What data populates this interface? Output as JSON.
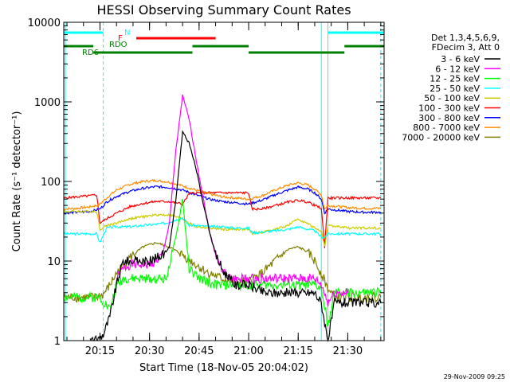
{
  "chart_data": {
    "type": "line",
    "title": "HESSI Observing Summary Count Rates",
    "ylabel": "Count Rate (s⁻¹ detector⁻¹)",
    "xlabel": "Start Time (18-Nov-05 20:04:02)",
    "yscale": "log",
    "ylim": [
      1,
      10000
    ],
    "xlim": [
      "20:04:02",
      "21:41:00"
    ],
    "x_ticks": [
      "20:15",
      "20:30",
      "20:45",
      "21:00",
      "21:15",
      "21:30"
    ],
    "y_ticks": [
      "1",
      "10",
      "100",
      "1000",
      "10000"
    ],
    "grid": false,
    "legend_position": "right",
    "legend_header": [
      "Det 1,3,4,5,6,9,",
      "FDecim 3, Att 0"
    ],
    "timestamp": "29-Nov-2009 09:25",
    "flag_labels": {
      "n": "N",
      "f": "F",
      "rdo": "RDO",
      "rd6": "RD6"
    },
    "flags": [
      {
        "label": "N",
        "color": "#00ffff",
        "segments": [
          [
            "20:04:02",
            "20:16:00"
          ],
          [
            "21:24:00",
            "21:41:00"
          ]
        ]
      },
      {
        "label": "F",
        "color": "#ff0000",
        "segments": [
          [
            "20:26:00",
            "20:50:00"
          ]
        ]
      },
      {
        "label": "RDO",
        "color": "#008000",
        "segments": [
          [
            "20:04:02",
            "20:13:00"
          ],
          [
            "20:43:00",
            "21:00:00"
          ],
          [
            "21:29:00",
            "21:41:00"
          ]
        ]
      },
      {
        "label": "RD6",
        "color": "#008000",
        "segments": [
          [
            "20:13:00",
            "20:43:00"
          ],
          [
            "21:00:00",
            "21:29:00"
          ]
        ]
      }
    ],
    "vertical_lines": [
      {
        "time": "20:04:30",
        "style": "solid",
        "color": "#00ffff"
      },
      {
        "time": "20:16:00",
        "style": "dashed",
        "color": "#00ffff"
      },
      {
        "time": "21:22:00",
        "style": "solid",
        "color": "#00ffff"
      },
      {
        "time": "21:24:00",
        "style": "solid",
        "color": "#00ffff"
      },
      {
        "time": "21:40:00",
        "style": "dashed",
        "color": "#00ffff"
      }
    ],
    "series": [
      {
        "name": "3 - 6 keV",
        "color": "#000000",
        "x": [
          "20:12",
          "20:14",
          "20:16",
          "20:18",
          "20:20",
          "20:22",
          "20:24",
          "20:26",
          "20:28",
          "20:30",
          "20:32",
          "20:34",
          "20:36",
          "20:38",
          "20:40",
          "20:42",
          "20:44",
          "20:46",
          "20:48",
          "20:50",
          "20:52",
          "20:54",
          "20:56",
          "21:00",
          "21:05",
          "21:10",
          "21:15",
          "21:20",
          "21:22",
          "21:24",
          "21:26",
          "21:30",
          "21:35",
          "21:40"
        ],
        "y": [
          1.0,
          1.0,
          1.2,
          2,
          5,
          10,
          10,
          10,
          10,
          10,
          11,
          12,
          15,
          60,
          420,
          300,
          150,
          60,
          25,
          12,
          8,
          6,
          5,
          5,
          4,
          4,
          4,
          4,
          3,
          1,
          3,
          3,
          3,
          3
        ]
      },
      {
        "name": "6 - 12 keV",
        "color": "#ff00ff",
        "x": [
          "20:20",
          "20:22",
          "20:24",
          "20:26",
          "20:28",
          "20:30",
          "20:32",
          "20:34",
          "20:36",
          "20:38",
          "20:40",
          "20:42",
          "20:44",
          "20:46",
          "20:48",
          "20:50",
          "20:52",
          "20:54",
          "20:58",
          "21:02",
          "21:06",
          "21:10",
          "21:15",
          "21:20",
          "21:22",
          "21:24",
          "21:26",
          "21:30"
        ],
        "y": [
          6,
          8,
          9,
          9,
          9,
          9,
          10,
          12,
          30,
          250,
          1200,
          600,
          200,
          70,
          25,
          12,
          8,
          6,
          6,
          6,
          6,
          6,
          6,
          6,
          5,
          3,
          4,
          4
        ]
      },
      {
        "name": "12 - 25 keV",
        "color": "#00ff00",
        "x": [
          "20:04",
          "20:10",
          "20:15",
          "20:18",
          "20:20",
          "20:22",
          "20:25",
          "20:30",
          "20:35",
          "20:38",
          "20:40",
          "20:42",
          "20:45",
          "20:50",
          "20:55",
          "21:00",
          "21:05",
          "21:10",
          "21:15",
          "21:20",
          "21:22",
          "21:24",
          "21:26",
          "21:30",
          "21:35",
          "21:40"
        ],
        "y": [
          3.5,
          3.5,
          3.5,
          2.5,
          5,
          6,
          6,
          6,
          6,
          20,
          60,
          8,
          6,
          5,
          5,
          5,
          5,
          5,
          5,
          5,
          4.5,
          1.5,
          4,
          4,
          4,
          4
        ]
      },
      {
        "name": "25 - 50 keV",
        "color": "#00ffff",
        "x": [
          "20:04",
          "20:08",
          "20:12",
          "20:14",
          "20:15",
          "20:17",
          "20:20",
          "20:24",
          "20:28",
          "20:32",
          "20:35",
          "20:38",
          "20:40",
          "20:42",
          "20:44",
          "20:48",
          "20:52",
          "20:56",
          "21:00",
          "21:01",
          "21:04",
          "21:08",
          "21:12",
          "21:15",
          "21:18",
          "21:20",
          "21:22",
          "21:23",
          "21:24",
          "21:30",
          "21:35",
          "21:40"
        ],
        "y": [
          22,
          22,
          22,
          22,
          17,
          26,
          27,
          27,
          28,
          29,
          30,
          33,
          35,
          28,
          28,
          27,
          27,
          26,
          26,
          23,
          23,
          24,
          25,
          27,
          25,
          24,
          20,
          20,
          22,
          22,
          22,
          22
        ]
      },
      {
        "name": "50 - 100 keV",
        "color": "#cccc00",
        "x": [
          "20:04",
          "20:08",
          "20:12",
          "20:14",
          "20:15",
          "20:17",
          "20:20",
          "20:24",
          "20:28",
          "20:32",
          "20:36",
          "20:40",
          "20:42",
          "20:44",
          "20:48",
          "20:52",
          "20:56",
          "21:00",
          "21:01",
          "21:04",
          "21:08",
          "21:12",
          "21:15",
          "21:18",
          "21:20",
          "21:22",
          "21:23",
          "21:24",
          "21:30",
          "21:35",
          "21:40"
        ],
        "y": [
          42,
          42,
          42,
          42,
          25,
          28,
          30,
          34,
          36,
          38,
          38,
          34,
          30,
          27,
          26,
          25,
          25,
          25,
          22,
          23,
          25,
          28,
          34,
          29,
          26,
          24,
          15,
          28,
          26,
          26,
          26
        ]
      },
      {
        "name": "100 - 300 keV",
        "color": "#ff0000",
        "x": [
          "20:04",
          "20:08",
          "20:12",
          "20:14",
          "20:15",
          "20:17",
          "20:20",
          "20:24",
          "20:28",
          "20:32",
          "20:36",
          "20:40",
          "20:42",
          "20:44",
          "20:48",
          "20:52",
          "20:56",
          "21:00",
          "21:01",
          "21:04",
          "21:08",
          "21:12",
          "21:15",
          "21:18",
          "21:20",
          "21:22",
          "21:23",
          "21:24",
          "21:30",
          "21:35",
          "21:40"
        ],
        "y": [
          62,
          64,
          66,
          68,
          30,
          34,
          40,
          48,
          53,
          56,
          56,
          52,
          70,
          72,
          72,
          72,
          72,
          72,
          45,
          45,
          50,
          55,
          58,
          55,
          50,
          46,
          15,
          62,
          62,
          62,
          62
        ]
      },
      {
        "name": "300 - 800 keV",
        "color": "#0000ff",
        "x": [
          "20:04",
          "20:08",
          "20:12",
          "20:14",
          "20:15",
          "20:17",
          "20:20",
          "20:24",
          "20:28",
          "20:32",
          "20:36",
          "20:40",
          "20:44",
          "20:48",
          "20:52",
          "20:56",
          "21:00",
          "21:04",
          "21:08",
          "21:12",
          "21:15",
          "21:18",
          "21:20",
          "21:22",
          "21:23",
          "21:24",
          "21:30",
          "21:35",
          "21:40"
        ],
        "y": [
          40,
          41,
          42,
          44,
          45,
          55,
          65,
          75,
          82,
          86,
          84,
          78,
          68,
          60,
          56,
          54,
          52,
          58,
          68,
          78,
          85,
          80,
          72,
          60,
          40,
          45,
          42,
          41,
          41
        ]
      },
      {
        "name": "800 - 7000 keV",
        "color": "#ff8c00",
        "x": [
          "20:04",
          "20:08",
          "20:12",
          "20:14",
          "20:15",
          "20:17",
          "20:20",
          "20:24",
          "20:28",
          "20:32",
          "20:36",
          "20:40",
          "20:44",
          "20:48",
          "20:52",
          "20:56",
          "21:00",
          "21:04",
          "21:08",
          "21:12",
          "21:15",
          "21:18",
          "21:20",
          "21:22",
          "21:23",
          "21:24",
          "21:30",
          "21:35",
          "21:40"
        ],
        "y": [
          45,
          46,
          48,
          50,
          52,
          62,
          78,
          92,
          100,
          103,
          98,
          88,
          78,
          70,
          64,
          62,
          60,
          66,
          78,
          90,
          96,
          90,
          80,
          68,
          45,
          50,
          47,
          46,
          46
        ]
      },
      {
        "name": "7000 - 20000 keV",
        "color": "#808000",
        "x": [
          "20:04",
          "20:08",
          "20:12",
          "20:14",
          "20:16",
          "20:18",
          "20:20",
          "20:24",
          "20:28",
          "20:32",
          "20:36",
          "20:40",
          "20:44",
          "20:48",
          "20:52",
          "20:56",
          "21:00",
          "21:04",
          "21:08",
          "21:12",
          "21:15",
          "21:18",
          "21:20",
          "21:22",
          "21:24",
          "21:26",
          "21:30",
          "21:35",
          "21:40"
        ],
        "y": [
          3.5,
          3.5,
          3.5,
          3.5,
          3.8,
          5,
          7,
          11,
          15,
          17,
          15,
          12,
          9,
          7,
          6,
          5.5,
          5.5,
          7,
          10,
          14,
          15,
          13,
          10,
          7,
          4.5,
          3.5,
          3.5,
          3.5,
          3.5
        ]
      }
    ]
  }
}
